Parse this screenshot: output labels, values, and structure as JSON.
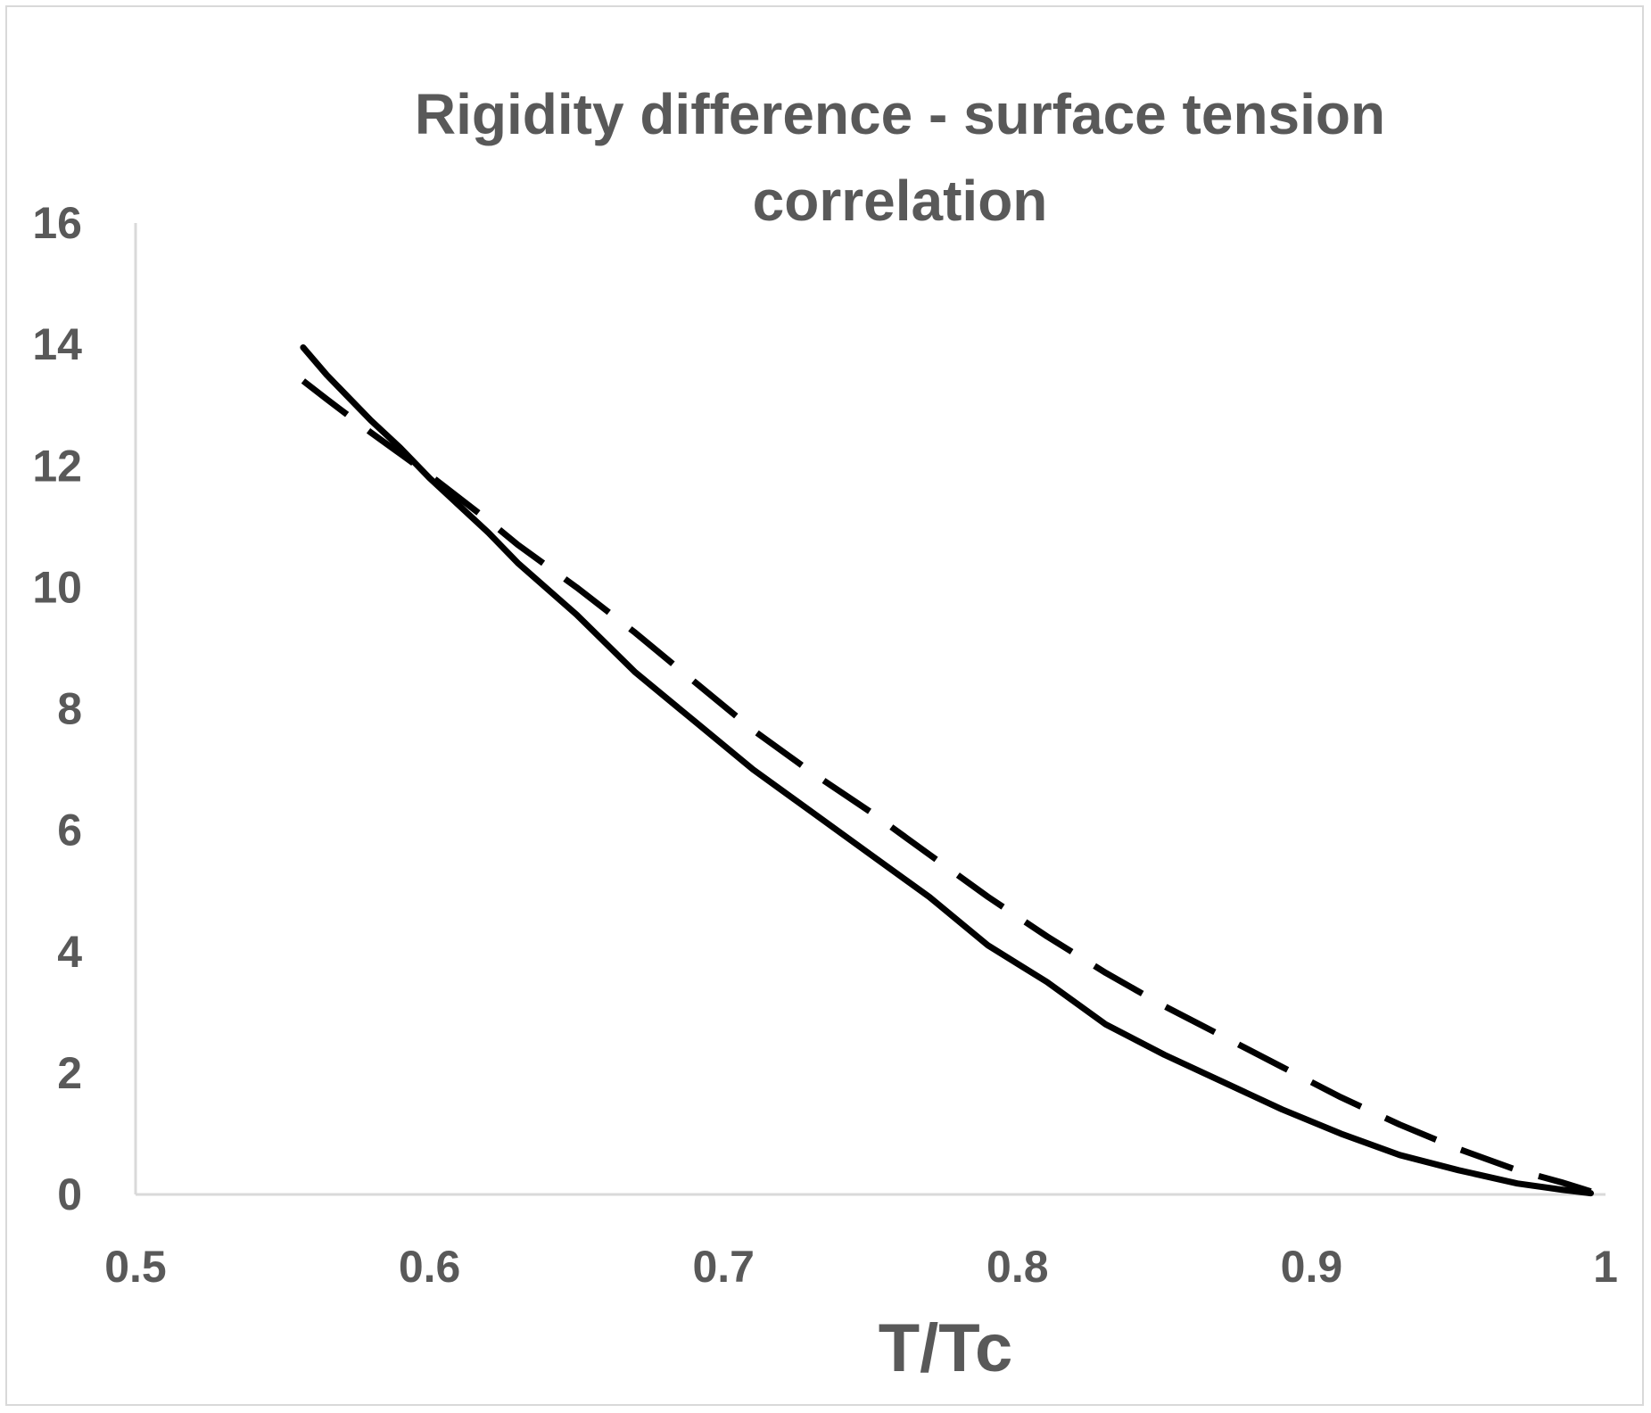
{
  "chart_data": {
    "type": "line",
    "title_lines": [
      "Rigidity difference - surface tension",
      "correlation"
    ],
    "xlabel": "T/Tc",
    "ylabel": "",
    "xlim": [
      0.5,
      1
    ],
    "ylim": [
      0,
      16
    ],
    "x_ticks": [
      0.5,
      0.6,
      0.7,
      0.8,
      0.9,
      1
    ],
    "x_tick_labels": [
      "0.5",
      "0.6",
      "0.7",
      "0.8",
      "0.9",
      "1"
    ],
    "y_ticks": [
      0,
      2,
      4,
      6,
      8,
      10,
      12,
      14,
      16
    ],
    "y_tick_labels": [
      "0",
      "2",
      "4",
      "6",
      "8",
      "10",
      "12",
      "14",
      "16"
    ],
    "grid": false,
    "legend": "none",
    "line_color": "#000000",
    "axis_color": "#d9d9d9",
    "text_color": "#595959",
    "series": [
      {
        "name": "solid",
        "style": "solid",
        "x": [
          0.557,
          0.565,
          0.58,
          0.59,
          0.6,
          0.62,
          0.63,
          0.65,
          0.67,
          0.69,
          0.71,
          0.73,
          0.75,
          0.77,
          0.79,
          0.81,
          0.83,
          0.85,
          0.87,
          0.89,
          0.91,
          0.93,
          0.95,
          0.97,
          0.985,
          0.995
        ],
        "y": [
          13.95,
          13.5,
          12.75,
          12.3,
          11.8,
          10.9,
          10.4,
          9.55,
          8.6,
          7.8,
          7.0,
          6.3,
          5.6,
          4.9,
          4.1,
          3.5,
          2.8,
          2.3,
          1.85,
          1.4,
          1.0,
          0.65,
          0.4,
          0.18,
          0.08,
          0.02
        ]
      },
      {
        "name": "dashed",
        "style": "dashed",
        "x": [
          0.557,
          0.565,
          0.58,
          0.59,
          0.6,
          0.62,
          0.63,
          0.65,
          0.67,
          0.69,
          0.71,
          0.73,
          0.75,
          0.77,
          0.79,
          0.81,
          0.83,
          0.85,
          0.87,
          0.89,
          0.91,
          0.93,
          0.95,
          0.97,
          0.985,
          0.995
        ],
        "y": [
          13.4,
          13.1,
          12.55,
          12.2,
          11.85,
          11.1,
          10.7,
          10.0,
          9.25,
          8.45,
          7.65,
          6.95,
          6.3,
          5.6,
          4.9,
          4.25,
          3.65,
          3.1,
          2.6,
          2.1,
          1.6,
          1.15,
          0.75,
          0.4,
          0.2,
          0.05
        ]
      }
    ]
  }
}
